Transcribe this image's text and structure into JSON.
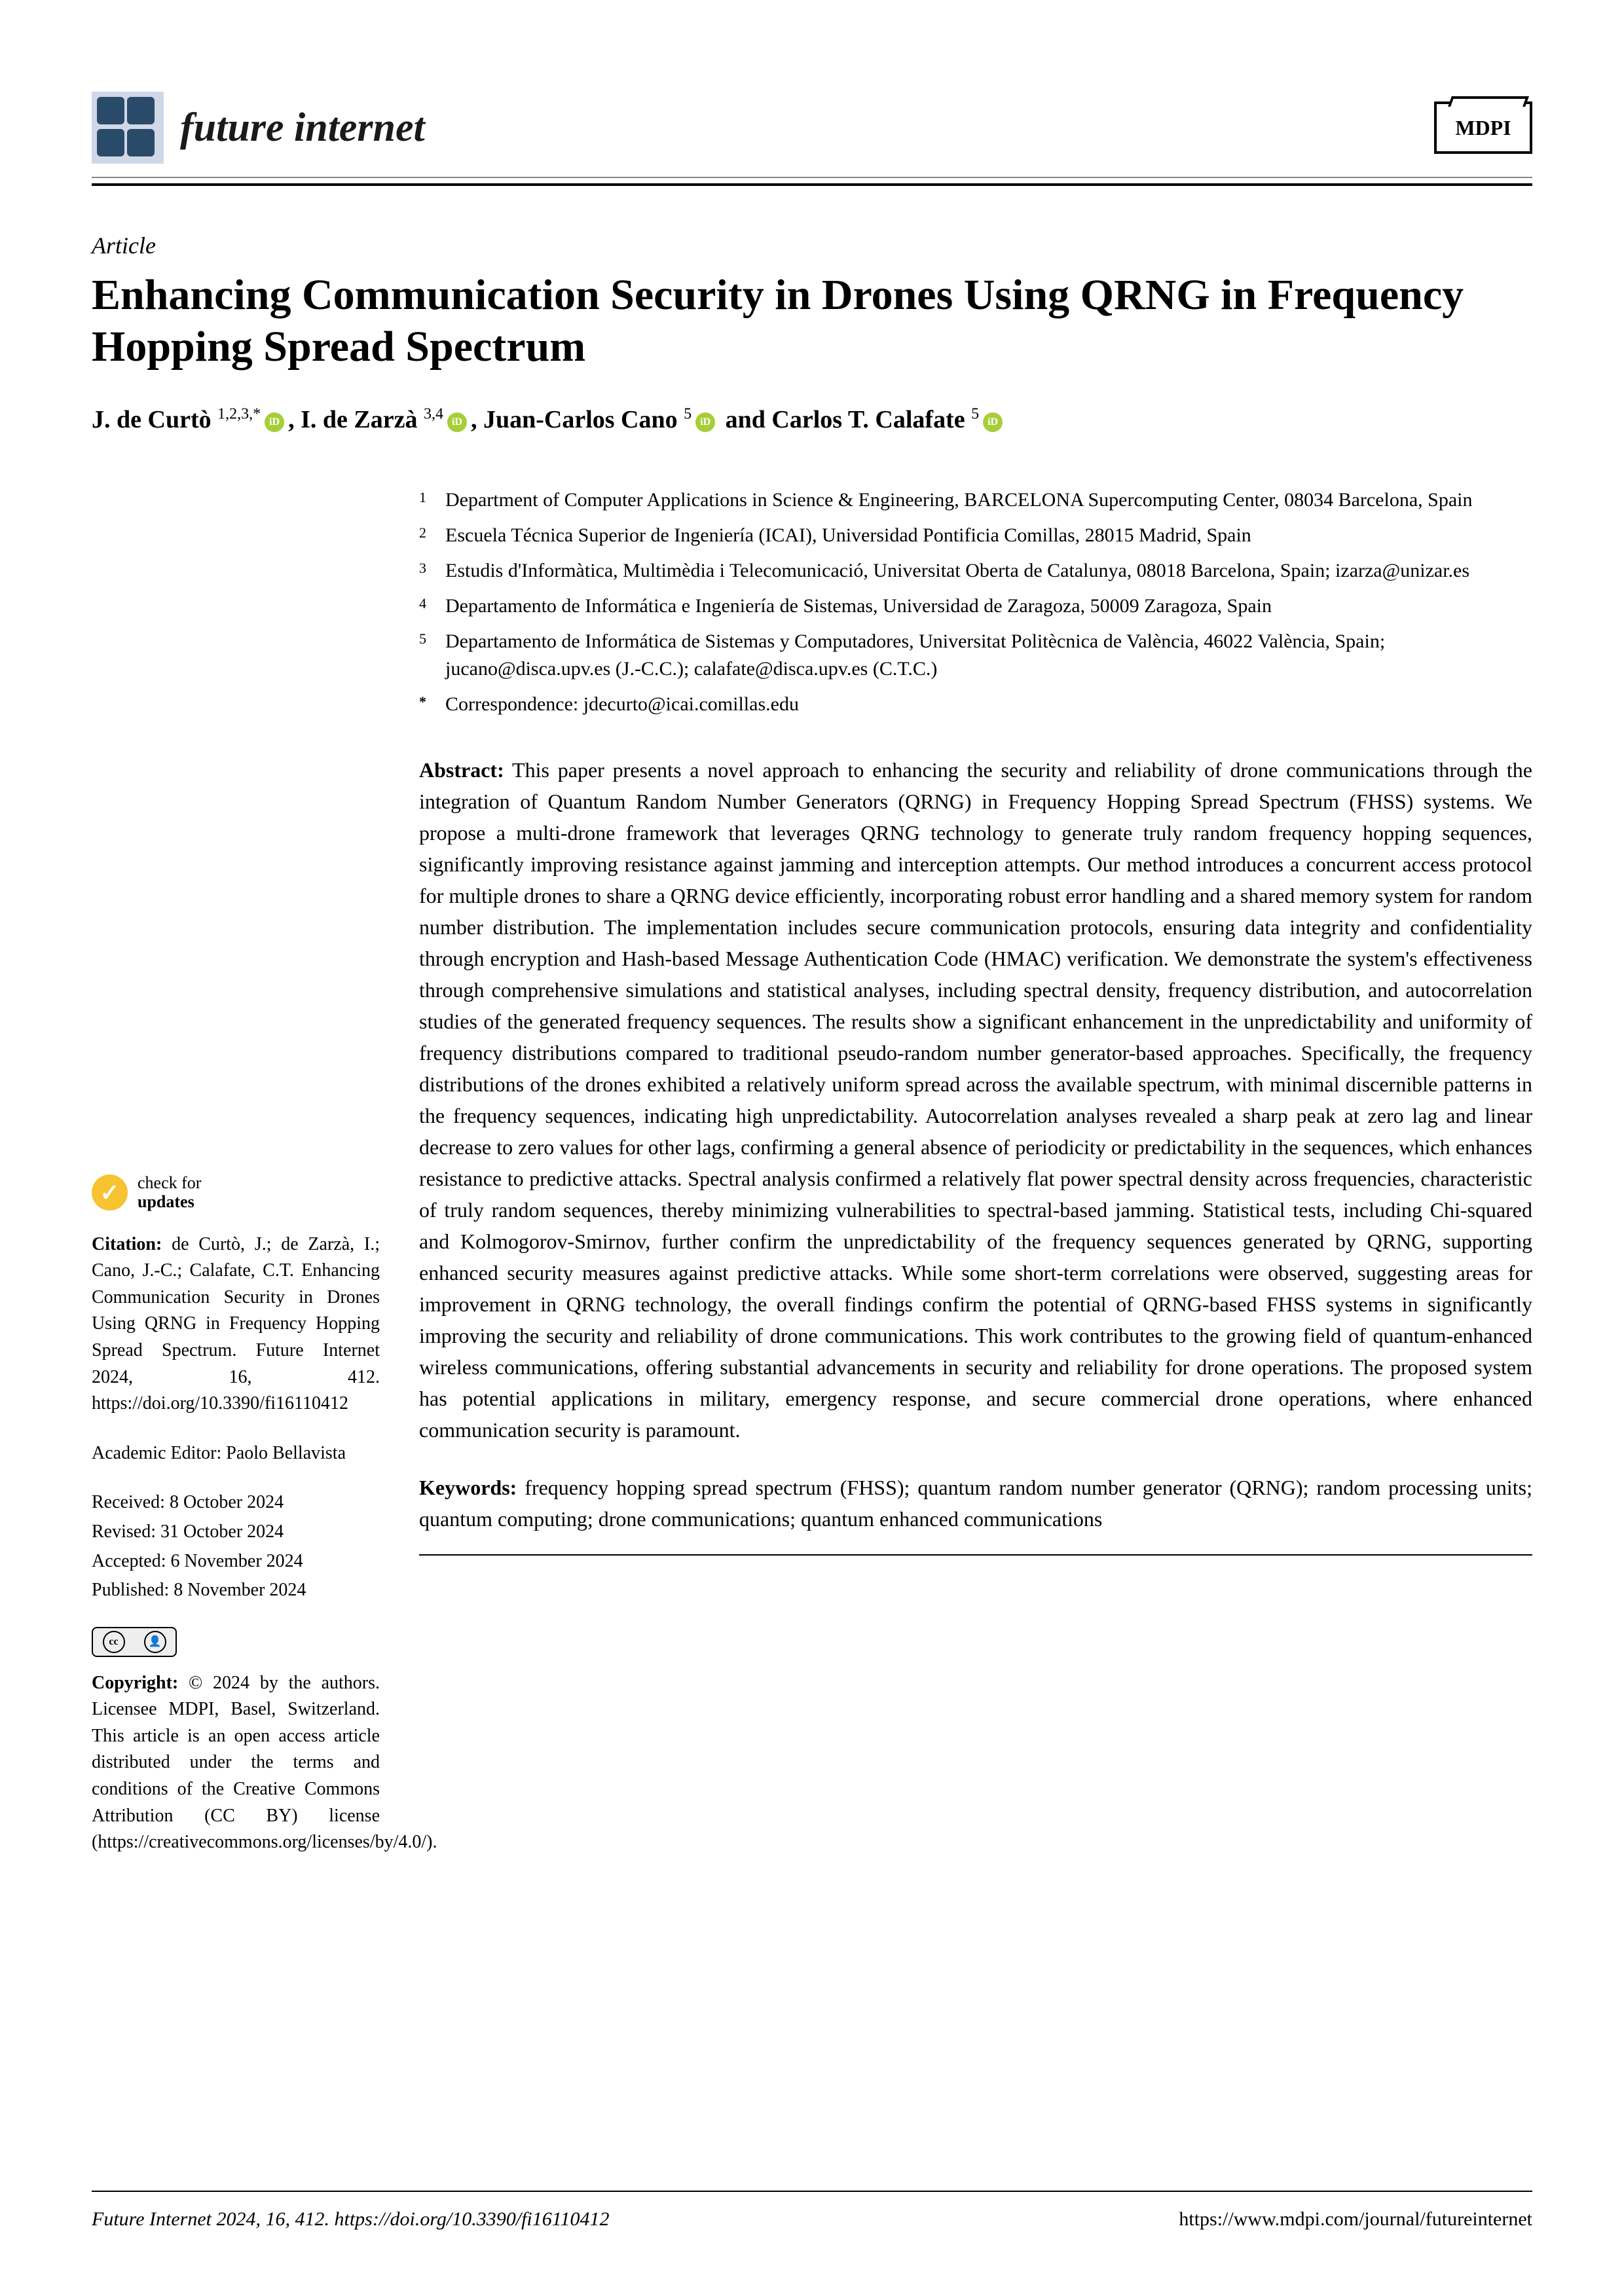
{
  "journal": {
    "name": "future internet",
    "publisher": "MDPI"
  },
  "article": {
    "type": "Article",
    "title": "Enhancing Communication Security in Drones Using QRNG in Frequency Hopping Spread Spectrum"
  },
  "authors": {
    "a1": {
      "name": "J. de Curtò",
      "sup": "1,2,3,",
      "corr": "*"
    },
    "a2": {
      "name": "I. de Zarzà",
      "sup": "3,4"
    },
    "a3": {
      "name": "Juan-Carlos Cano",
      "sup": "5"
    },
    "a4": {
      "name": "Carlos T. Calafate",
      "sup": "5"
    }
  },
  "affiliations": {
    "n1": "1",
    "t1": "Department of Computer Applications in Science & Engineering, BARCELONA Supercomputing Center, 08034 Barcelona, Spain",
    "n2": "2",
    "t2": "Escuela Técnica Superior de Ingeniería (ICAI), Universidad Pontificia Comillas, 28015 Madrid, Spain",
    "n3": "3",
    "t3": "Estudis d'Informàtica, Multimèdia i Telecomunicació, Universitat Oberta de Catalunya, 08018 Barcelona, Spain; izarza@unizar.es",
    "n4": "4",
    "t4": "Departamento de Informática e Ingeniería de Sistemas, Universidad de Zaragoza, 50009 Zaragoza, Spain",
    "n5": "5",
    "t5": "Departamento de Informática de Sistemas y Computadores, Universitat Politècnica de València, 46022 València, Spain; jucano@disca.upv.es (J.-C.C.); calafate@disca.upv.es (C.T.C.)",
    "nc": "*",
    "tc": "Correspondence: jdecurto@icai.comillas.edu"
  },
  "abstract": {
    "label": "Abstract:",
    "text": "This paper presents a novel approach to enhancing the security and reliability of drone communications through the integration of Quantum Random Number Generators (QRNG) in Frequency Hopping Spread Spectrum (FHSS) systems. We propose a multi-drone framework that leverages QRNG technology to generate truly random frequency hopping sequences, significantly improving resistance against jamming and interception attempts. Our method introduces a concurrent access protocol for multiple drones to share a QRNG device efficiently, incorporating robust error handling and a shared memory system for random number distribution. The implementation includes secure communication protocols, ensuring data integrity and confidentiality through encryption and Hash-based Message Authentication Code (HMAC) verification. We demonstrate the system's effectiveness through comprehensive simulations and statistical analyses, including spectral density, frequency distribution, and autocorrelation studies of the generated frequency sequences. The results show a significant enhancement in the unpredictability and uniformity of frequency distributions compared to traditional pseudo-random number generator-based approaches. Specifically, the frequency distributions of the drones exhibited a relatively uniform spread across the available spectrum, with minimal discernible patterns in the frequency sequences, indicating high unpredictability. Autocorrelation analyses revealed a sharp peak at zero lag and linear decrease to zero values for other lags, confirming a general absence of periodicity or predictability in the sequences, which enhances resistance to predictive attacks. Spectral analysis confirmed a relatively flat power spectral density across frequencies, characteristic of truly random sequences, thereby minimizing vulnerabilities to spectral-based jamming. Statistical tests, including Chi-squared and Kolmogorov-Smirnov, further confirm the unpredictability of the frequency sequences generated by QRNG, supporting enhanced security measures against predictive attacks. While some short-term correlations were observed, suggesting areas for improvement in QRNG technology, the overall findings confirm the potential of QRNG-based FHSS systems in significantly improving the security and reliability of drone communications. This work contributes to the growing field of quantum-enhanced wireless communications, offering substantial advancements in security and reliability for drone operations. The proposed system has potential applications in military, emergency response, and secure commercial drone operations, where enhanced communication security is paramount."
  },
  "keywords": {
    "label": "Keywords:",
    "text": "frequency hopping spread spectrum (FHSS); quantum random number generator (QRNG); random processing units; quantum computing; drone communications; quantum enhanced communications"
  },
  "sidebar": {
    "check1": "check for",
    "check2": "updates",
    "citation_label": "Citation:",
    "citation_text": "de Curtò, J.; de Zarzà, I.; Cano, J.-C.; Calafate, C.T. Enhancing Communication Security in Drones Using QRNG in Frequency Hopping Spread Spectrum. Future Internet 2024, 16, 412. https://doi.org/10.3390/fi16110412",
    "editor_label": "Academic Editor:",
    "editor_name": "Paolo Bellavista",
    "received": "Received: 8 October 2024",
    "revised": "Revised: 31 October 2024",
    "accepted": "Accepted: 6 November 2024",
    "published": "Published: 8 November 2024",
    "cc": "cc",
    "by": "BY",
    "copyright_label": "Copyright:",
    "copyright_text": "© 2024 by the authors. Licensee MDPI, Basel, Switzerland. This article is an open access article distributed under the terms and conditions of the Creative Commons Attribution (CC BY) license (https://creativecommons.org/licenses/by/4.0/)."
  },
  "footer": {
    "left": "Future Internet 2024, 16, 412. https://doi.org/10.3390/fi16110412",
    "right": "https://www.mdpi.com/journal/futureinternet"
  }
}
